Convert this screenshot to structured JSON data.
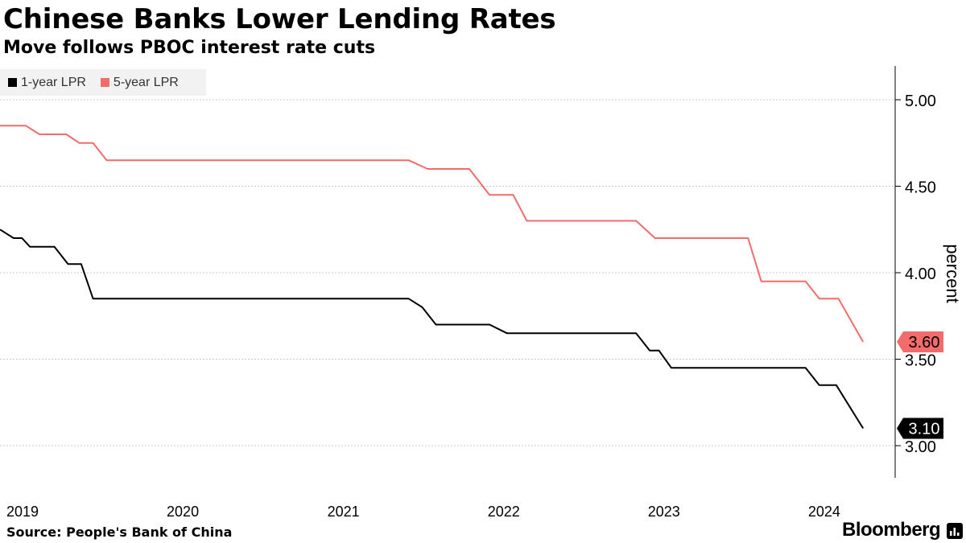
{
  "header": {
    "title": "Chinese Banks Lower Lending Rates",
    "subtitle": "Move follows PBOC interest rate cuts"
  },
  "footer": {
    "source": "Source: People's Bank of China",
    "brand": "Bloomberg",
    "brand_icon": "bloomberg-chart-icon"
  },
  "chart_data": {
    "type": "line",
    "ylabel": "percent",
    "ylim": [
      2.8,
      5.2
    ],
    "yticks": [
      3.0,
      3.5,
      4.0,
      4.5,
      5.0
    ],
    "ytick_labels": [
      "3.00",
      "3.50",
      "4.00",
      "4.50",
      "5.00"
    ],
    "xlim": [
      "2019-01-01",
      "2024-08-01"
    ],
    "xticks": [
      "2019-01-01",
      "2020-01-01",
      "2021-01-01",
      "2022-01-01",
      "2023-01-01",
      "2024-01-01"
    ],
    "xtick_labels": [
      "2019",
      "2020",
      "2021",
      "2022",
      "2023",
      "2024"
    ],
    "grid": true,
    "legend_position": "top-left",
    "series": [
      {
        "name": "1-year LPR",
        "color": "#000000",
        "end_label": "3.10",
        "points": [
          [
            "2019-01-01",
            4.25
          ],
          [
            "2019-02-01",
            4.2
          ],
          [
            "2019-02-20",
            4.2
          ],
          [
            "2019-03-10",
            4.15
          ],
          [
            "2019-05-05",
            4.15
          ],
          [
            "2019-06-05",
            4.05
          ],
          [
            "2019-07-05",
            4.05
          ],
          [
            "2019-08-01",
            3.85
          ],
          [
            "2021-07-20",
            3.85
          ],
          [
            "2021-08-20",
            3.8
          ],
          [
            "2021-09-20",
            3.7
          ],
          [
            "2022-01-20",
            3.7
          ],
          [
            "2022-03-01",
            3.65
          ],
          [
            "2022-12-20",
            3.65
          ],
          [
            "2023-01-20",
            3.55
          ],
          [
            "2023-02-10",
            3.55
          ],
          [
            "2023-03-10",
            3.45
          ],
          [
            "2024-01-10",
            3.45
          ],
          [
            "2024-02-10",
            3.35
          ],
          [
            "2024-03-20",
            3.35
          ],
          [
            "2024-05-20",
            3.1
          ]
        ]
      },
      {
        "name": "5-year LPR",
        "color": "#f26c6c",
        "end_label": "3.60",
        "points": [
          [
            "2019-01-01",
            4.85
          ],
          [
            "2019-03-01",
            4.85
          ],
          [
            "2019-04-01",
            4.8
          ],
          [
            "2019-06-01",
            4.8
          ],
          [
            "2019-07-01",
            4.75
          ],
          [
            "2019-08-01",
            4.75
          ],
          [
            "2019-09-01",
            4.65
          ],
          [
            "2021-07-20",
            4.65
          ],
          [
            "2021-09-01",
            4.6
          ],
          [
            "2021-12-05",
            4.6
          ],
          [
            "2022-01-20",
            4.45
          ],
          [
            "2022-03-15",
            4.45
          ],
          [
            "2022-04-15",
            4.3
          ],
          [
            "2022-12-20",
            4.3
          ],
          [
            "2023-02-01",
            4.2
          ],
          [
            "2023-09-01",
            4.2
          ],
          [
            "2023-10-01",
            3.95
          ],
          [
            "2024-01-10",
            3.95
          ],
          [
            "2024-02-10",
            3.85
          ],
          [
            "2024-03-25",
            3.85
          ],
          [
            "2024-05-20",
            3.6
          ]
        ]
      }
    ]
  }
}
